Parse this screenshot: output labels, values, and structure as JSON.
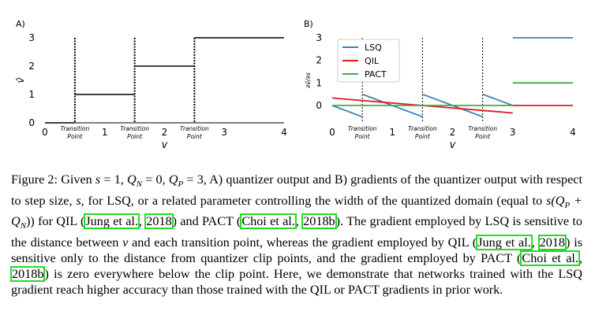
{
  "chart_data": [
    {
      "panel_label": "A)",
      "type": "line",
      "xlabel": "v",
      "ylabel": "v̂",
      "xlim": [
        0,
        4
      ],
      "ylim": [
        0,
        3
      ],
      "xticks": [
        "0",
        "1",
        "2",
        "3",
        "4"
      ],
      "yticks": [
        "0",
        "1",
        "2",
        "3"
      ],
      "transition_points": [
        0.5,
        1.5,
        2.5
      ],
      "transition_label_line1": "Transition",
      "transition_label_line2": "Point",
      "series": [
        {
          "segments": [
            {
              "x": [
                0,
                0.5
              ],
              "y": [
                0,
                0
              ]
            },
            {
              "x": [
                0.5,
                1.5
              ],
              "y": [
                1,
                1
              ]
            },
            {
              "x": [
                1.5,
                2.5
              ],
              "y": [
                2,
                2
              ]
            },
            {
              "x": [
                2.5,
                4
              ],
              "y": [
                3,
                3
              ]
            }
          ],
          "color": "#000000"
        }
      ]
    },
    {
      "panel_label": "B)",
      "type": "line",
      "xlabel": "v",
      "ylabel": "∂v̂/∂s",
      "xlim": [
        0,
        4
      ],
      "ylim": [
        -0.5,
        3
      ],
      "xticks": [
        "0",
        "1",
        "2",
        "3",
        "4"
      ],
      "yticks": [
        "0",
        "1",
        "2",
        "3"
      ],
      "legend_position": "top-left",
      "transition_points": [
        0.5,
        1.5,
        2.5
      ],
      "transition_label_line1": "Transition",
      "transition_label_line2": "Point",
      "series": [
        {
          "name": "LSQ",
          "color": "#3d7fb5",
          "segments": [
            {
              "x": [
                0,
                0.5
              ],
              "y": [
                0,
                -0.5
              ]
            },
            {
              "x": [
                0.5,
                1.5
              ],
              "y": [
                0.5,
                -0.5
              ]
            },
            {
              "x": [
                1.5,
                2.5
              ],
              "y": [
                0.5,
                -0.5
              ]
            },
            {
              "x": [
                2.5,
                3
              ],
              "y": [
                0.5,
                0
              ]
            },
            {
              "x": [
                3,
                4
              ],
              "y": [
                3,
                3
              ]
            }
          ]
        },
        {
          "name": "QIL",
          "color": "#e31a1c",
          "segments": [
            {
              "x": [
                0,
                3
              ],
              "y": [
                0.33,
                -0.33
              ]
            },
            {
              "x": [
                3,
                4
              ],
              "y": [
                0,
                0
              ]
            }
          ]
        },
        {
          "name": "PACT",
          "color": "#44aa44",
          "segments": [
            {
              "x": [
                0,
                3
              ],
              "y": [
                0,
                0
              ]
            },
            {
              "x": [
                3,
                4
              ],
              "y": [
                1,
                1
              ]
            }
          ]
        }
      ]
    }
  ],
  "caption": {
    "figure_label": "Figure 2:",
    "t1": " Given ",
    "s_eq": "s",
    "t2": " = 1, ",
    "qn": "Q",
    "qn_sub": "N",
    "t3": " = 0, ",
    "qp": "Q",
    "qp_sub": "P",
    "t4": " = 3, A) quantizer output and B) gradients of the quantizer output with respect to step size, ",
    "s2": "s",
    "t5": ", for LSQ, or a related parameter controlling the width of the quantized domain (equal to ",
    "expr": "s",
    "expr_rest": "(Q",
    "expr_sub1": "P",
    "expr_plus": " + Q",
    "expr_sub2": "N",
    "expr_close": "))",
    "t6": " for QIL (",
    "cite_jung_a": "Jung et al.",
    "t7": ", ",
    "cite_jung_year_a": "2018",
    "t8": ") and PACT (",
    "cite_choi_a": "Choi et al.",
    "t9": ", ",
    "cite_choi_year_a": "2018b",
    "t10": "). The gradient employed by LSQ is sensitive to the distance between ",
    "v1": "v",
    "t11": " and each transition point, whereas the gradient employed by QIL (",
    "cite_jung_b": "Jung et al.",
    "t12": ", ",
    "cite_jung_year_b": "2018",
    "t13": ") is sensitive only to the distance from quantizer clip points, and the gradient employed by PACT (",
    "cite_choi_b": "Choi et al.",
    "t14": ", ",
    "cite_choi_year_b": "2018b",
    "t15": ") is zero everywhere below the clip point. Here, we demonstrate that networks trained with the LSQ gradient reach higher accuracy than those trained with the QIL or PACT gradients in prior work."
  }
}
